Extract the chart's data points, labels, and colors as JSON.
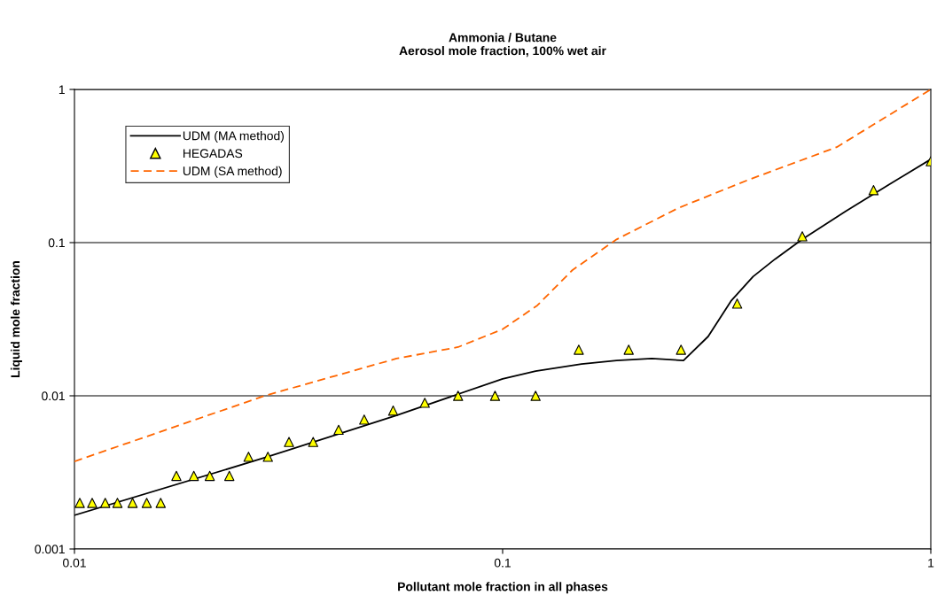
{
  "chart_data": {
    "type": "line",
    "title": "Ammonia / Butane\nAerosol mole fraction, 100% wet air",
    "xlabel": "Pollutant mole fraction in all phases",
    "ylabel": "Liquid mole fraction",
    "log": "xy",
    "xlim": [
      0.01,
      1
    ],
    "ylim": [
      0.001,
      1
    ],
    "xticks": [
      0.01,
      0.1,
      1
    ],
    "yticks": [
      0.001,
      0.01,
      0.1,
      1
    ],
    "grid": "y",
    "legend": "top left",
    "series": [
      {
        "name": "UDM (MA method)",
        "color": "#000000",
        "line_style": "solid",
        "marker": "none",
        "x": [
          0.01,
          0.0278,
          0.0565,
          0.1,
          0.1194,
          0.1528,
          0.1846,
          0.223,
          0.2645,
          0.302,
          0.3415,
          0.3845,
          0.4327,
          0.501,
          0.632,
          0.8,
          1.0
        ],
        "values": [
          0.00166,
          0.00394,
          0.00746,
          0.0129,
          0.0145,
          0.0161,
          0.017,
          0.0175,
          0.017,
          0.0244,
          0.0416,
          0.06,
          0.078,
          0.105,
          0.16,
          0.24,
          0.35
        ]
      },
      {
        "name": "HEGADAS",
        "type": "scatter",
        "color": "#ffff00",
        "marker": "triangle",
        "x": [
          0.01029,
          0.011,
          0.0118,
          0.0126,
          0.01367,
          0.01475,
          0.0159,
          0.0173,
          0.019,
          0.0207,
          0.023,
          0.0255,
          0.0283,
          0.0317,
          0.0361,
          0.0414,
          0.0475,
          0.0555,
          0.0658,
          0.0787,
          0.096,
          0.1194,
          0.1506,
          0.197,
          0.261,
          0.353,
          0.501,
          0.735,
          1.0
        ],
        "values": [
          0.002,
          0.002,
          0.002,
          0.002,
          0.002,
          0.002,
          0.002,
          0.003,
          0.003,
          0.003,
          0.003,
          0.004,
          0.004,
          0.005,
          0.005,
          0.006,
          0.007,
          0.008,
          0.009,
          0.01,
          0.01,
          0.01,
          0.02,
          0.02,
          0.02,
          0.04,
          0.11,
          0.22,
          0.34
        ]
      },
      {
        "name": "UDM (SA method)",
        "color": "#ff6600",
        "line_style": "dashed",
        "marker": "none",
        "x": [
          0.01,
          0.0278,
          0.0565,
          0.0787,
          0.1,
          0.1205,
          0.1456,
          0.1846,
          0.257,
          0.375,
          0.603,
          1.0
        ],
        "values": [
          0.00373,
          0.01,
          0.0175,
          0.0208,
          0.0272,
          0.0389,
          0.0662,
          0.105,
          0.168,
          0.257,
          0.42,
          1.0
        ]
      }
    ]
  }
}
